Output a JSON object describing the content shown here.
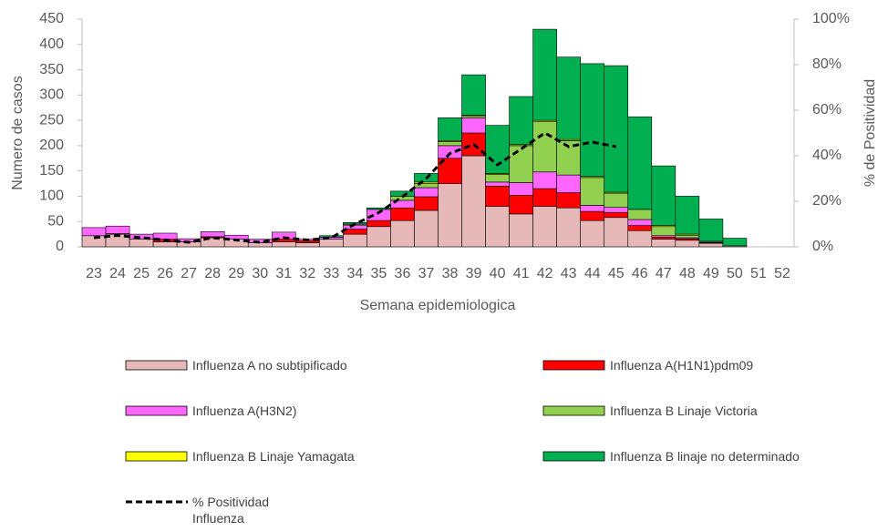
{
  "chart_data": {
    "type": "bar",
    "y_label": "Numero de casos",
    "y2_label": "% de Positividad",
    "x_label": "Semana epidemiologica",
    "categories": [
      "23",
      "24",
      "25",
      "26",
      "27",
      "28",
      "29",
      "30",
      "31",
      "32",
      "33",
      "34",
      "35",
      "36",
      "37",
      "38",
      "39",
      "40",
      "41",
      "42",
      "43",
      "44",
      "45",
      "46",
      "47",
      "48",
      "49",
      "50",
      "51",
      "52"
    ],
    "ylim": [
      0,
      450
    ],
    "yticks": [
      0,
      50,
      100,
      150,
      200,
      250,
      300,
      350,
      400,
      450
    ],
    "y2lim": [
      0,
      100
    ],
    "y2ticks": [
      {
        "value": 0,
        "label": "0%"
      },
      {
        "value": 20,
        "label": "20%"
      },
      {
        "value": 40,
        "label": "40%"
      },
      {
        "value": 60,
        "label": "60%"
      },
      {
        "value": 80,
        "label": "80%"
      },
      {
        "value": 100,
        "label": "100%"
      }
    ],
    "series": [
      {
        "name": "Influenza A no subtipificado",
        "color": "#e6b9b8",
        "type": "bar",
        "values": [
          22,
          25,
          15,
          10,
          10,
          18,
          15,
          8,
          10,
          8,
          15,
          25,
          40,
          52,
          72,
          125,
          180,
          80,
          65,
          80,
          77,
          52,
          58,
          32,
          15,
          13,
          7,
          2,
          0,
          0
        ]
      },
      {
        "name": "Influenza A(H1N1)pdm09",
        "color": "#ff0000",
        "type": "bar",
        "values": [
          0,
          1,
          0,
          5,
          0,
          2,
          0,
          0,
          5,
          4,
          0,
          10,
          12,
          25,
          27,
          50,
          45,
          40,
          37,
          35,
          30,
          18,
          10,
          10,
          4,
          3,
          1,
          0,
          0,
          0
        ]
      },
      {
        "name": "Influenza A(H3N2)",
        "color": "#ff66ff",
        "type": "bar",
        "values": [
          16,
          15,
          10,
          12,
          6,
          10,
          8,
          7,
          14,
          3,
          4,
          8,
          22,
          15,
          18,
          25,
          30,
          8,
          25,
          33,
          35,
          12,
          10,
          12,
          3,
          2,
          1,
          0,
          0,
          0
        ]
      },
      {
        "name": "Influenza B Linaje Victoria",
        "color": "#92d050",
        "type": "bar",
        "values": [
          0,
          0,
          0,
          0,
          0,
          0,
          0,
          0,
          0,
          0,
          0,
          2,
          0,
          8,
          8,
          8,
          3,
          15,
          73,
          100,
          68,
          55,
          28,
          20,
          18,
          5,
          2,
          0,
          0,
          0
        ]
      },
      {
        "name": "Influenza B Linaje Yamagata",
        "color": "#ffff00",
        "type": "bar",
        "values": [
          0,
          0,
          0,
          0,
          0,
          0,
          0,
          0,
          0,
          0,
          0,
          0,
          0,
          0,
          3,
          2,
          2,
          2,
          2,
          2,
          2,
          2,
          2,
          0,
          2,
          2,
          0,
          0,
          0,
          0
        ]
      },
      {
        "name": "Influenza B linaje no determinado",
        "color": "#00b050",
        "type": "bar",
        "values": [
          0,
          0,
          0,
          0,
          0,
          0,
          0,
          0,
          0,
          0,
          3,
          3,
          3,
          10,
          17,
          45,
          80,
          95,
          95,
          180,
          163,
          223,
          250,
          183,
          118,
          75,
          44,
          15,
          0,
          0
        ]
      },
      {
        "name": "% Positividad Influenza",
        "color": "#000000",
        "type": "line",
        "axis": "y2",
        "values": [
          4,
          5,
          4,
          3,
          2,
          4,
          3,
          2,
          4,
          3,
          4,
          10,
          15,
          22,
          30,
          41,
          45,
          36,
          43,
          50,
          44,
          46,
          44,
          null,
          null,
          null,
          null,
          null,
          null,
          null
        ]
      }
    ]
  }
}
